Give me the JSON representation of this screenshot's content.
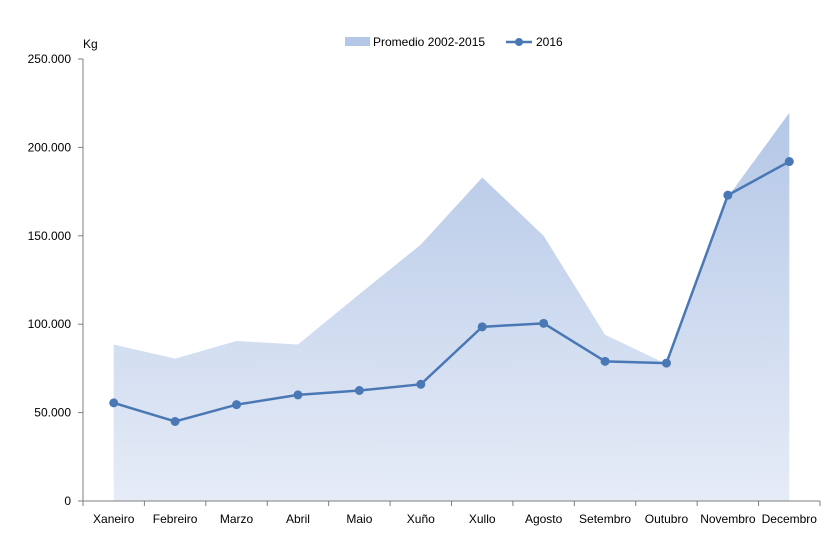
{
  "chart_data": {
    "type": "line",
    "title": "",
    "ylabel": "Kg",
    "xlabel": "",
    "categories": [
      "Xaneiro",
      "Febreiro",
      "Marzo",
      "Abril",
      "Maio",
      "Xuño",
      "Xullo",
      "Agosto",
      "Setembro",
      "Outubro",
      "Novembro",
      "Decembro"
    ],
    "ylim": [
      0,
      250000
    ],
    "yticks": [
      0,
      50000,
      100000,
      150000,
      200000,
      250000
    ],
    "ytick_labels": [
      "0",
      "50.000",
      "100.000",
      "150.000",
      "200.000",
      "250.000"
    ],
    "legend_position": "top-center",
    "grid": false,
    "series": [
      {
        "name": "Promedio 2002-2015",
        "type": "area",
        "color": "#b4c7e7",
        "values": [
          88500,
          80500,
          90500,
          88500,
          117000,
          145000,
          183000,
          150000,
          94000,
          77500,
          172000,
          219500
        ]
      },
      {
        "name": "2016",
        "type": "line",
        "color": "#4a78b5",
        "values": [
          55500,
          45000,
          54500,
          60000,
          62500,
          66000,
          98500,
          100500,
          79000,
          78000,
          173000,
          192000
        ]
      }
    ]
  }
}
